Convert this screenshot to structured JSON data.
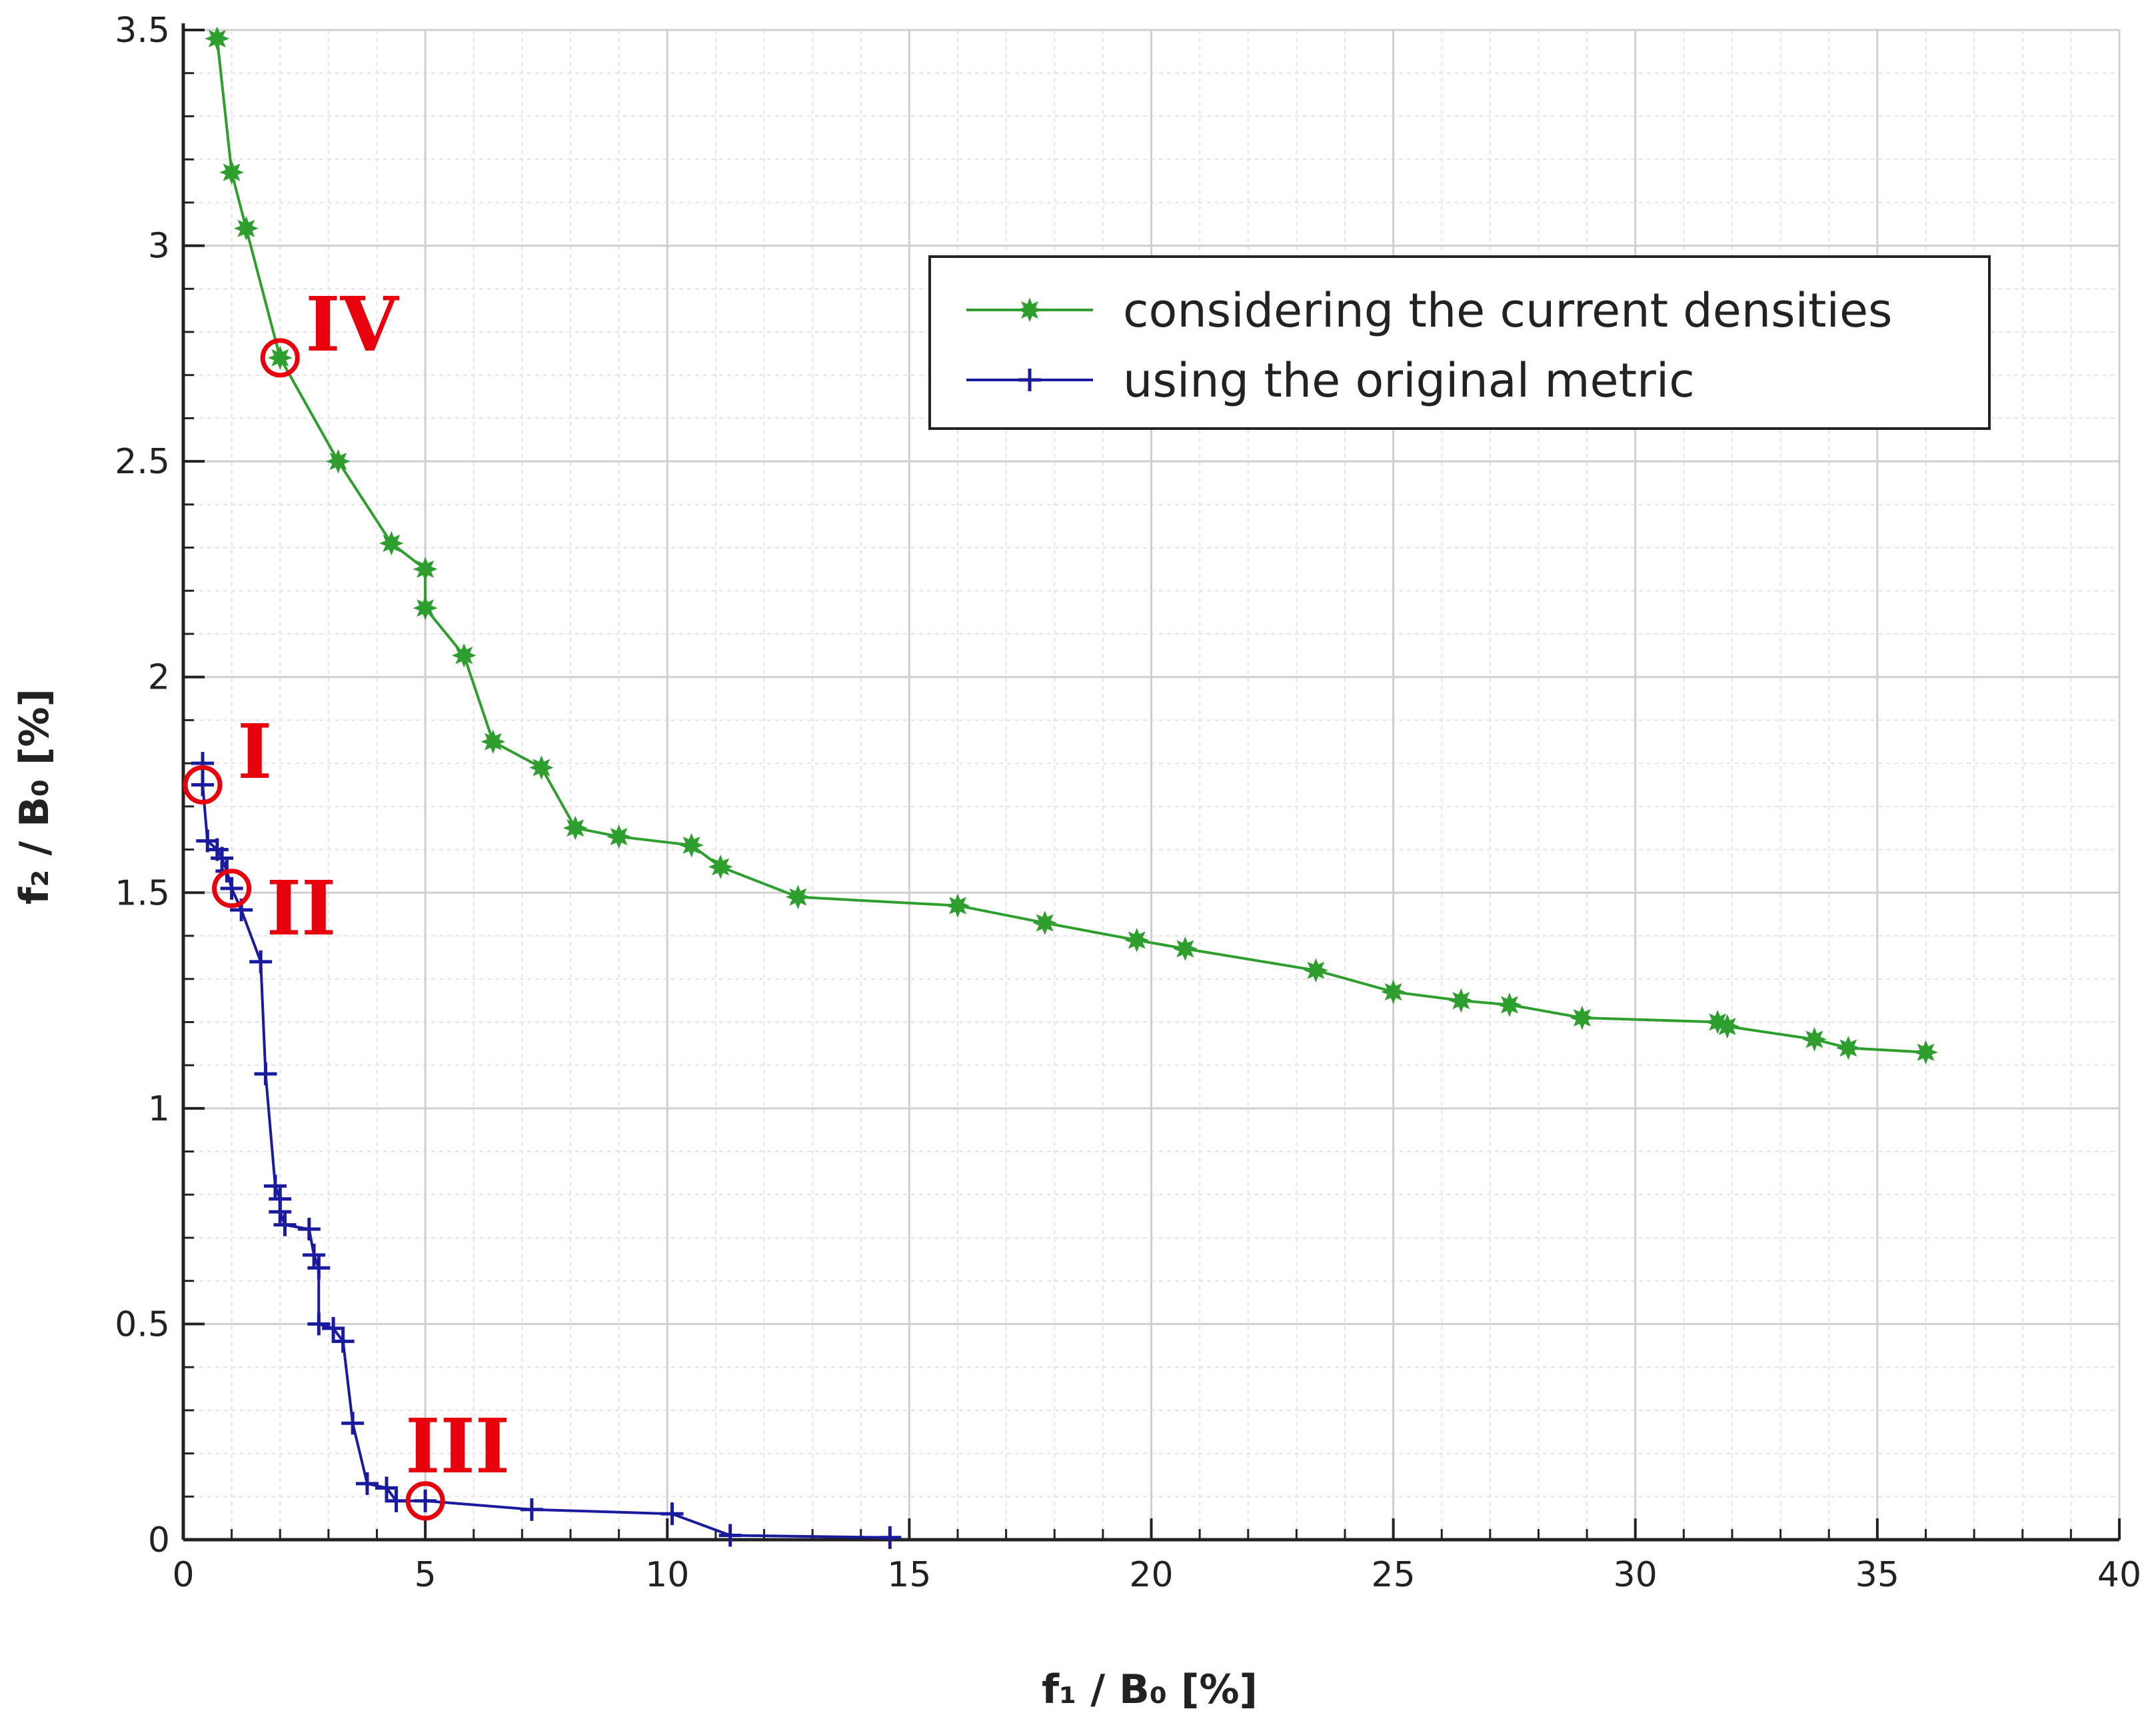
{
  "chart_data": {
    "type": "line",
    "title": "",
    "xlabel": "f₁ / B₀ [%]",
    "ylabel": "f₂ / B₀ [%]",
    "xlim": [
      0,
      40
    ],
    "ylim": [
      0,
      3.5
    ],
    "x_ticks": [
      "0",
      "5",
      "10",
      "15",
      "20",
      "25",
      "30",
      "35",
      "40"
    ],
    "y_ticks": [
      "0",
      "0.5",
      "1",
      "1.5",
      "2",
      "2.5",
      "3",
      "3.5"
    ],
    "grid": true,
    "legend_position": "top-right",
    "series": [
      {
        "name": "considering the current densities",
        "color": "#2e9e2e",
        "marker": "star",
        "points": [
          [
            0.7,
            3.48
          ],
          [
            1.0,
            3.17
          ],
          [
            1.3,
            3.04
          ],
          [
            2.0,
            2.74
          ],
          [
            3.2,
            2.5
          ],
          [
            4.3,
            2.31
          ],
          [
            5.0,
            2.25
          ],
          [
            5.0,
            2.16
          ],
          [
            5.8,
            2.05
          ],
          [
            6.4,
            1.85
          ],
          [
            7.4,
            1.79
          ],
          [
            8.1,
            1.65
          ],
          [
            9.0,
            1.63
          ],
          [
            10.5,
            1.61
          ],
          [
            11.1,
            1.56
          ],
          [
            12.7,
            1.49
          ],
          [
            16.0,
            1.47
          ],
          [
            17.8,
            1.43
          ],
          [
            19.7,
            1.39
          ],
          [
            20.7,
            1.37
          ],
          [
            23.4,
            1.32
          ],
          [
            25.0,
            1.27
          ],
          [
            26.4,
            1.25
          ],
          [
            27.4,
            1.24
          ],
          [
            28.9,
            1.21
          ],
          [
            31.7,
            1.2
          ],
          [
            31.9,
            1.19
          ],
          [
            33.7,
            1.16
          ],
          [
            34.4,
            1.14
          ],
          [
            36.0,
            1.13
          ]
        ]
      },
      {
        "name": "using the original metric",
        "color": "#1a1a9e",
        "marker": "plus",
        "points": [
          [
            0.4,
            1.8
          ],
          [
            0.4,
            1.75
          ],
          [
            0.5,
            1.62
          ],
          [
            0.7,
            1.6
          ],
          [
            0.8,
            1.58
          ],
          [
            0.9,
            1.55
          ],
          [
            1.0,
            1.51
          ],
          [
            1.2,
            1.46
          ],
          [
            1.6,
            1.34
          ],
          [
            1.7,
            1.08
          ],
          [
            1.9,
            0.82
          ],
          [
            2.0,
            0.79
          ],
          [
            2.0,
            0.76
          ],
          [
            2.1,
            0.73
          ],
          [
            2.6,
            0.72
          ],
          [
            2.7,
            0.66
          ],
          [
            2.8,
            0.63
          ],
          [
            2.8,
            0.5
          ],
          [
            3.1,
            0.49
          ],
          [
            3.3,
            0.46
          ],
          [
            3.5,
            0.27
          ],
          [
            3.8,
            0.13
          ],
          [
            4.2,
            0.12
          ],
          [
            4.4,
            0.09
          ],
          [
            5.0,
            0.09
          ],
          [
            7.2,
            0.07
          ],
          [
            10.1,
            0.06
          ],
          [
            11.3,
            0.01
          ],
          [
            14.6,
            0.005
          ]
        ]
      }
    ],
    "annotations": [
      {
        "label": "I",
        "x": 0.4,
        "y": 1.75
      },
      {
        "label": "II",
        "x": 1.0,
        "y": 1.51
      },
      {
        "label": "III",
        "x": 5.0,
        "y": 0.09
      },
      {
        "label": "IV",
        "x": 2.0,
        "y": 2.74
      }
    ]
  }
}
